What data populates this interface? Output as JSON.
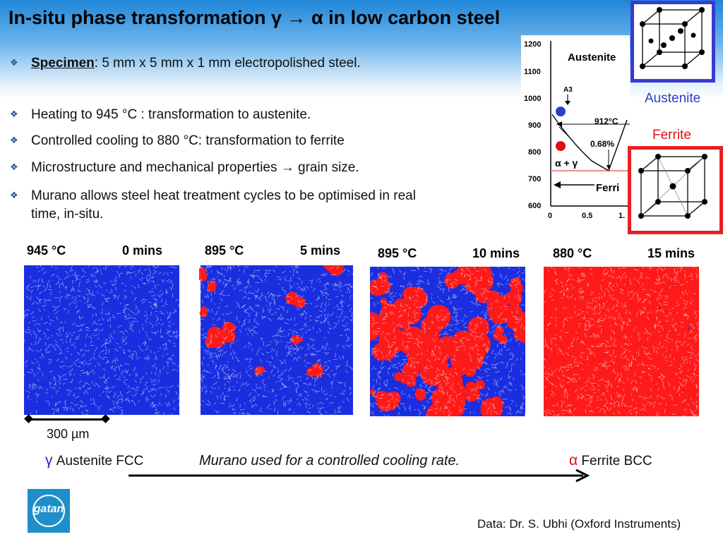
{
  "title": "In-situ phase transformation γ → α  in low carbon steel",
  "bullets": {
    "specimen_label": "Specimen",
    "specimen_text": ":  5 mm x 5 mm x 1 mm electropolished steel.",
    "items": [
      "Heating to 945 °C : transformation to austenite.",
      "Controlled cooling to 880 °C: transformation to ferrite",
      "Microstructure and mechanical properties → grain size."
    ],
    "murano_line1": "Murano allows steel heat treatment cycles to be optimised in real",
    "murano_line2": "time, in-situ."
  },
  "panels": [
    {
      "temp": "945 °C",
      "time": "0 mins",
      "ferrite_fraction": 0.0
    },
    {
      "temp": "895 °C",
      "time": "5 mins",
      "ferrite_fraction": 0.12
    },
    {
      "temp": "895 °C",
      "time": "10 mins",
      "ferrite_fraction": 0.45
    },
    {
      "temp": "880 °C",
      "time": "15 mins",
      "ferrite_fraction": 0.97
    }
  ],
  "scale_bar": "300 µm",
  "austenite_label": {
    "symbol": "γ",
    "text": " Austenite FCC"
  },
  "ferrite_label": {
    "symbol": "α",
    "text": " Ferrite BCC"
  },
  "cooling_text": "Murano used for a controlled cooling rate.",
  "logo_text": "gatan",
  "credit": "Data:  Dr. S. Ubhi (Oxford Instruments)",
  "diagram": {
    "y_ticks": [
      "1200",
      "1100",
      "1000",
      "900",
      "800",
      "700",
      "600"
    ],
    "x_ticks": [
      "0",
      "0.5",
      "1."
    ],
    "austenite_region": "Austenite",
    "ferrite_region": "Ferri",
    "a3_label": "A3",
    "temp_912": "912°C",
    "carbon_label": "0.68%",
    "alpha_gamma": "α + γ",
    "austenite_cell_label": "Austenite",
    "ferrite_cell_label": "Ferrite"
  },
  "colors": {
    "austenite": "#1a2ee0",
    "ferrite": "#ff1a1a",
    "grain_boundary": "#ffffff"
  }
}
